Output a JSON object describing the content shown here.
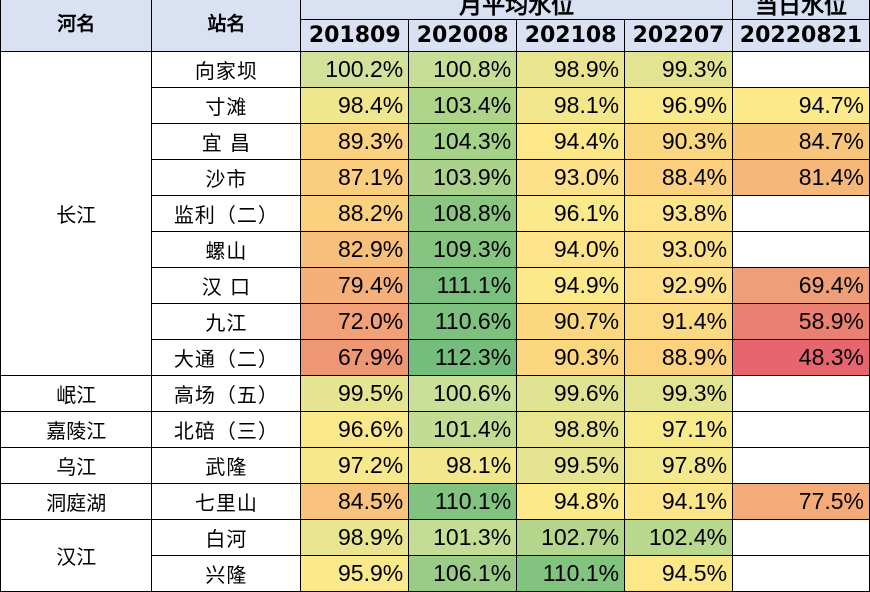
{
  "header": {
    "river_label": "河名",
    "station_label": "站名",
    "monthly_label": "月平均水位",
    "daily_label": "当日水位",
    "dates": [
      "201809",
      "202008",
      "202108",
      "202207",
      "20220821"
    ]
  },
  "rows": [
    {
      "river": "长江",
      "station": "向家坝",
      "values": [
        "100.2%",
        "100.8%",
        "98.9%",
        "99.3%",
        ""
      ],
      "colors": [
        "#d3e29a",
        "#c8de97",
        "#e8e58e",
        "#e2e491",
        "#ffffff"
      ]
    },
    {
      "station": "寸滩",
      "values": [
        "98.4%",
        "103.4%",
        "98.1%",
        "96.9%",
        "94.7%"
      ],
      "colors": [
        "#efe68d",
        "#aed48a",
        "#f2e78d",
        "#f9e98b",
        "#fce98a"
      ]
    },
    {
      "station": "宜 昌",
      "values": [
        "89.3%",
        "104.3%",
        "94.4%",
        "90.3%",
        "84.7%"
      ],
      "colors": [
        "#fbd27f",
        "#a6d189",
        "#fde889",
        "#fbd880",
        "#f8c67b"
      ]
    },
    {
      "station": "沙市",
      "values": [
        "87.1%",
        "103.9%",
        "93.0%",
        "88.4%",
        "81.4%"
      ],
      "colors": [
        "#fbcd7e",
        "#aad28a",
        "#fde18a",
        "#fcd07f",
        "#f6b87a"
      ]
    },
    {
      "station": "监利（二）",
      "values": [
        "88.2%",
        "108.8%",
        "96.1%",
        "93.8%",
        ""
      ],
      "colors": [
        "#fbd07f",
        "#8ac681",
        "#faea8b",
        "#fde389",
        "#ffffff"
      ]
    },
    {
      "station": "螺山",
      "values": [
        "82.9%",
        "109.3%",
        "94.0%",
        "93.0%",
        ""
      ],
      "colors": [
        "#f8bf7c",
        "#86c580",
        "#fde48a",
        "#fde18a",
        "#ffffff"
      ]
    },
    {
      "station": "汉 口",
      "values": [
        "79.4%",
        "111.1%",
        "94.9%",
        "92.9%",
        "69.4%"
      ],
      "colors": [
        "#f5b079",
        "#7bc07e",
        "#fce98a",
        "#fde089",
        "#ee9e78"
      ]
    },
    {
      "station": "九江",
      "values": [
        "72.0%",
        "110.6%",
        "90.7%",
        "91.4%",
        "58.9%"
      ],
      "colors": [
        "#f1a077",
        "#7ec17f",
        "#fbd880",
        "#fcd983",
        "#e98071"
      ]
    },
    {
      "station": "大通（二）",
      "values": [
        "67.9%",
        "112.3%",
        "90.3%",
        "88.9%",
        "48.3%"
      ],
      "colors": [
        "#ee9775",
        "#74bd7d",
        "#fbd880",
        "#fcd27f",
        "#e6656e"
      ]
    },
    {
      "river": "岷江",
      "station": "高场（五）",
      "values": [
        "99.5%",
        "100.6%",
        "99.6%",
        "99.3%",
        ""
      ],
      "colors": [
        "#e5e490",
        "#cadf97",
        "#e0e391",
        "#e2e491",
        "#ffffff"
      ]
    },
    {
      "river": "嘉陵江",
      "station": "北碚（三）",
      "values": [
        "96.6%",
        "101.4%",
        "98.8%",
        "97.1%",
        ""
      ],
      "colors": [
        "#f9e98b",
        "#c2dc94",
        "#e9e58e",
        "#f8e98b",
        "#ffffff"
      ]
    },
    {
      "river": "乌江",
      "station": "武隆",
      "values": [
        "97.2%",
        "98.1%",
        "99.5%",
        "97.8%",
        ""
      ],
      "colors": [
        "#f7e88c",
        "#f2e78d",
        "#e5e490",
        "#f4e88c",
        "#ffffff"
      ]
    },
    {
      "river": "洞庭湖",
      "station": "七里山",
      "values": [
        "84.5%",
        "110.1%",
        "94.8%",
        "94.1%",
        "77.5%"
      ],
      "colors": [
        "#f9c37d",
        "#82c37f",
        "#fce989",
        "#fde58a",
        "#f4aa79"
      ]
    },
    {
      "river": "汉江",
      "station": "白河",
      "values": [
        "98.9%",
        "101.3%",
        "102.7%",
        "102.4%",
        ""
      ],
      "colors": [
        "#e8e58e",
        "#c3dd95",
        "#b4d68c",
        "#b8d88e",
        "#ffffff"
      ]
    },
    {
      "station": "兴隆",
      "values": [
        "95.9%",
        "106.1%",
        "110.1%",
        "94.5%",
        ""
      ],
      "colors": [
        "#fbea8b",
        "#9bcc87",
        "#82c37f",
        "#fce889",
        "#ffffff"
      ]
    }
  ]
}
